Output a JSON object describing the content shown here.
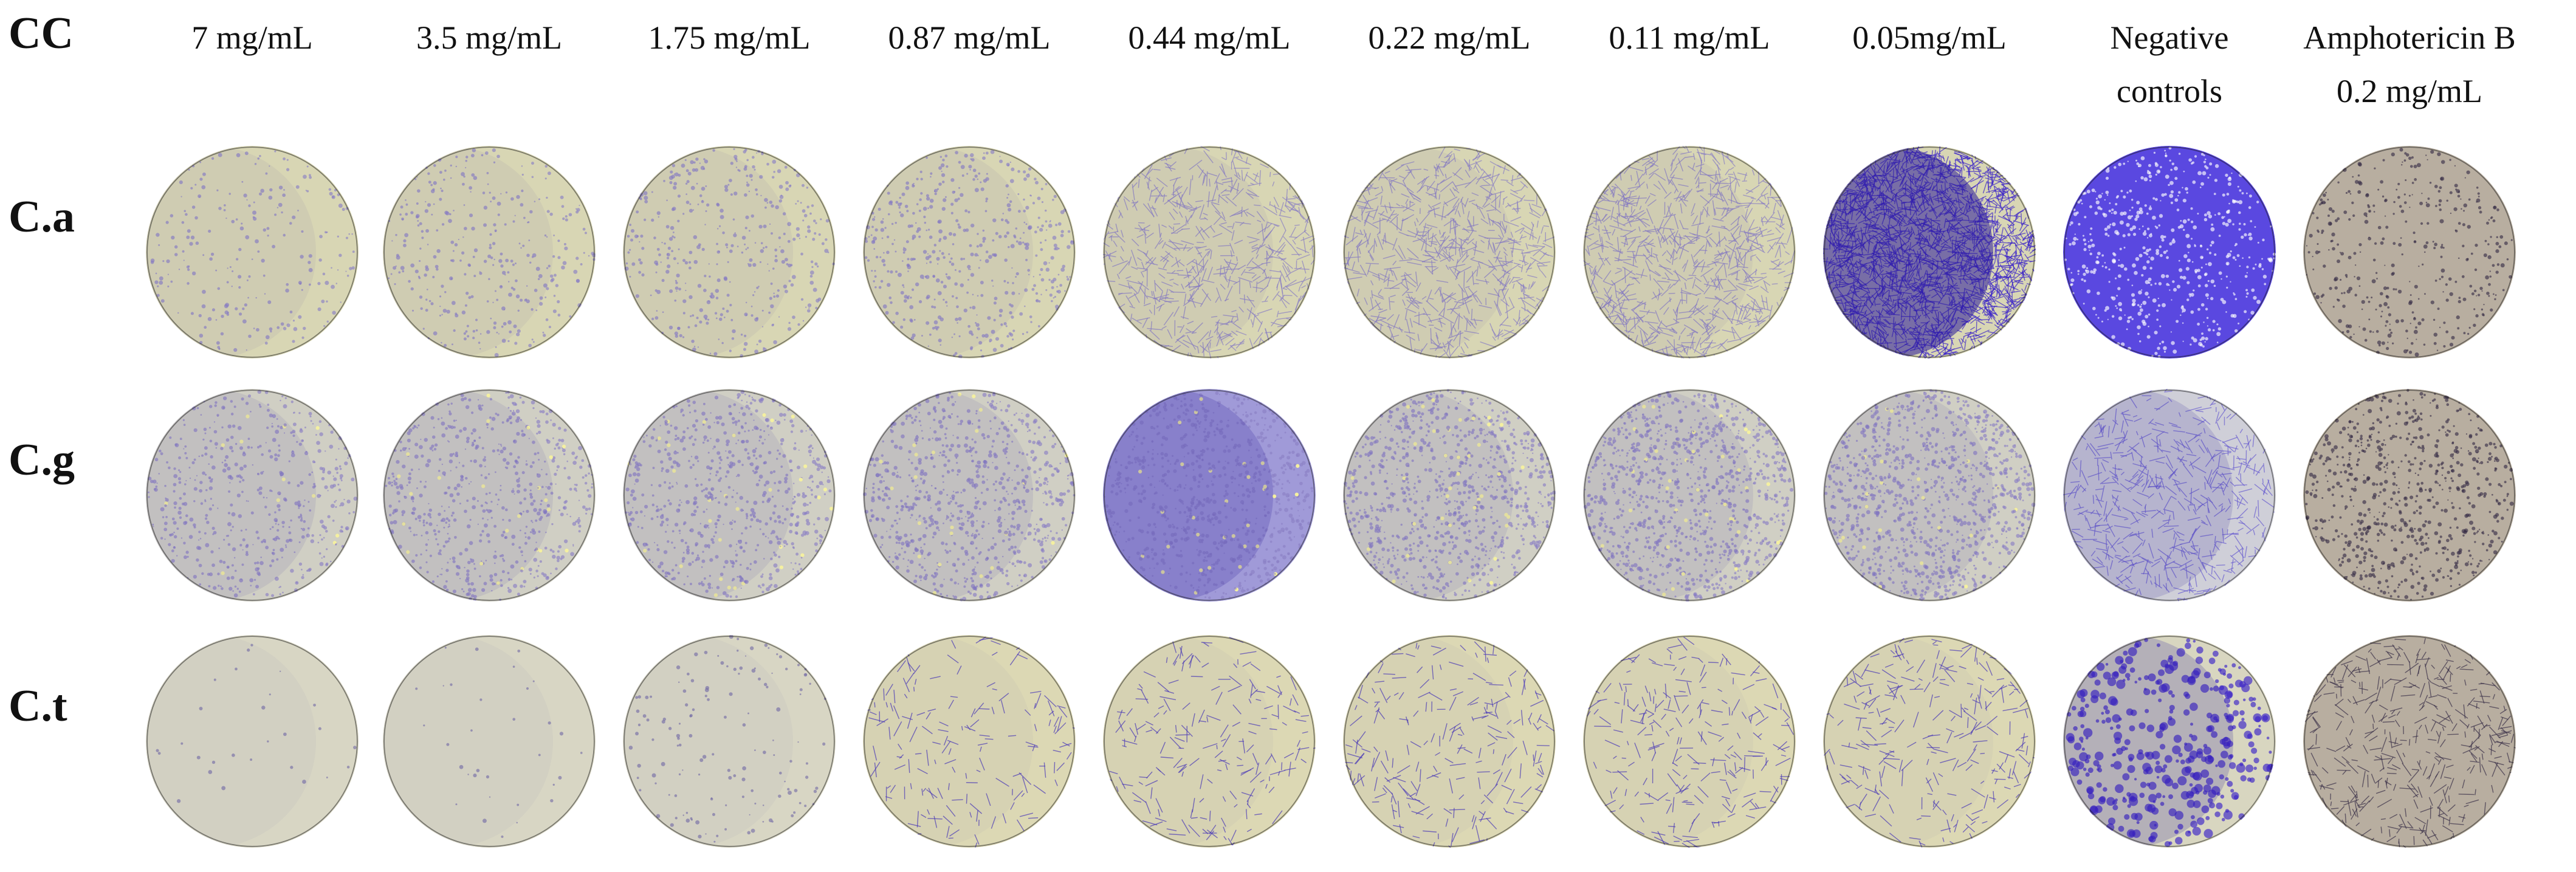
{
  "corner_label": "CC",
  "columns": [
    {
      "line1": "7 mg/mL",
      "line2": ""
    },
    {
      "line1": "3.5 mg/mL",
      "line2": ""
    },
    {
      "line1": "1.75 mg/mL",
      "line2": ""
    },
    {
      "line1": "0.87 mg/mL",
      "line2": ""
    },
    {
      "line1": "0.44 mg/mL",
      "line2": ""
    },
    {
      "line1": "0.22 mg/mL",
      "line2": ""
    },
    {
      "line1": "0.11 mg/mL",
      "line2": ""
    },
    {
      "line1": "0.05mg/mL",
      "line2": ""
    },
    {
      "line1": "Negative",
      "line2": "controls"
    },
    {
      "line1": "Amphotericin B",
      "line2": "0.2 mg/mL"
    }
  ],
  "rows": [
    {
      "label": "C.a"
    },
    {
      "label": "C.g"
    },
    {
      "label": "C.t"
    }
  ],
  "colors": {
    "well_background": "#d8d6b4",
    "stain_light": "#8a7fc4",
    "stain_dark": "#3a22c8",
    "ampho_background": "#b8aea0",
    "ampho_stain": "#3a3048"
  }
}
